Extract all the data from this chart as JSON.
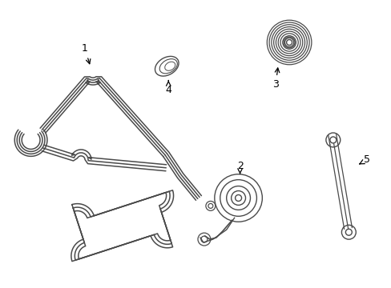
{
  "background_color": "#ffffff",
  "line_color": "#4a4a4a",
  "figsize": [
    4.89,
    3.6
  ],
  "dpi": 100
}
